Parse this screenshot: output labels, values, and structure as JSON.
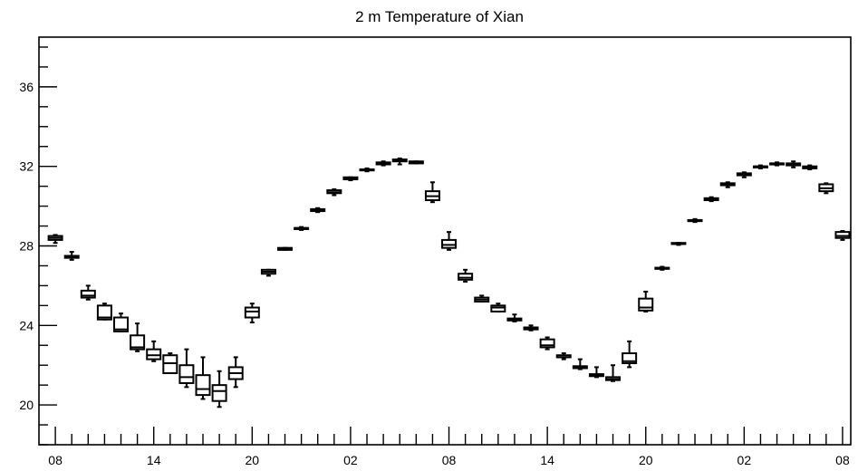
{
  "chart_data": {
    "type": "box",
    "title": "2 m Temperature of Xian",
    "xlabel": "",
    "ylabel": "",
    "ylim": [
      18,
      38.5
    ],
    "y_ticks": [
      20,
      24,
      28,
      32,
      36
    ],
    "x_ticks": [
      "08",
      "14",
      "20",
      "02",
      "08",
      "14",
      "20",
      "02",
      "08"
    ],
    "x_tick_hours": [
      0,
      6,
      12,
      18,
      24,
      30,
      36,
      42,
      48
    ],
    "xlim_hours": [
      -1,
      48.5
    ],
    "grid": false,
    "legend": "none",
    "series": [
      {
        "values": [
          {
            "hour": 0,
            "min": 28.15,
            "q1": 28.3,
            "median": 28.4,
            "q3": 28.5,
            "max": 28.55
          },
          {
            "hour": 1,
            "min": 27.3,
            "q1": 27.4,
            "median": 27.45,
            "q3": 27.5,
            "max": 27.7
          },
          {
            "hour": 2,
            "min": 25.3,
            "q1": 25.4,
            "median": 25.5,
            "q3": 25.75,
            "max": 26.0
          },
          {
            "hour": 3,
            "min": 24.3,
            "q1": 24.3,
            "median": 24.4,
            "q3": 25.0,
            "max": 25.1
          },
          {
            "hour": 4,
            "min": 23.7,
            "q1": 23.7,
            "median": 23.8,
            "q3": 24.4,
            "max": 24.6
          },
          {
            "hour": 5,
            "min": 22.7,
            "q1": 22.8,
            "median": 22.9,
            "q3": 23.5,
            "max": 24.1
          },
          {
            "hour": 6,
            "min": 22.2,
            "q1": 22.3,
            "median": 22.5,
            "q3": 22.8,
            "max": 23.2
          },
          {
            "hour": 7,
            "min": 21.6,
            "q1": 21.6,
            "median": 22.1,
            "q3": 22.5,
            "max": 22.6
          },
          {
            "hour": 8,
            "min": 20.9,
            "q1": 21.1,
            "median": 21.4,
            "q3": 22.0,
            "max": 22.8
          },
          {
            "hour": 9,
            "min": 20.3,
            "q1": 20.5,
            "median": 20.8,
            "q3": 21.5,
            "max": 22.4
          },
          {
            "hour": 10,
            "min": 19.9,
            "q1": 20.2,
            "median": 20.7,
            "q3": 21.0,
            "max": 21.7
          },
          {
            "hour": 11,
            "min": 20.9,
            "q1": 21.3,
            "median": 21.6,
            "q3": 21.9,
            "max": 22.4
          },
          {
            "hour": 12,
            "min": 24.15,
            "q1": 24.4,
            "median": 24.7,
            "q3": 24.9,
            "max": 25.1
          },
          {
            "hour": 13,
            "min": 26.5,
            "q1": 26.6,
            "median": 26.7,
            "q3": 26.8,
            "max": 26.8
          },
          {
            "hour": 14,
            "min": 27.8,
            "q1": 27.8,
            "median": 27.85,
            "q3": 27.9,
            "max": 27.9
          },
          {
            "hour": 15,
            "min": 28.8,
            "q1": 28.85,
            "median": 28.9,
            "q3": 28.9,
            "max": 28.95
          },
          {
            "hour": 16,
            "min": 29.7,
            "q1": 29.75,
            "median": 29.8,
            "q3": 29.85,
            "max": 29.9
          },
          {
            "hour": 17,
            "min": 30.55,
            "q1": 30.65,
            "median": 30.7,
            "q3": 30.8,
            "max": 30.85
          },
          {
            "hour": 18,
            "min": 31.3,
            "q1": 31.35,
            "median": 31.4,
            "q3": 31.45,
            "max": 31.45
          },
          {
            "hour": 19,
            "min": 31.75,
            "q1": 31.8,
            "median": 31.85,
            "q3": 31.85,
            "max": 31.9
          },
          {
            "hour": 20,
            "min": 32.05,
            "q1": 32.1,
            "median": 32.15,
            "q3": 32.2,
            "max": 32.25
          },
          {
            "hour": 21,
            "min": 32.1,
            "q1": 32.25,
            "median": 32.3,
            "q3": 32.35,
            "max": 32.4
          },
          {
            "hour": 22,
            "min": 32.15,
            "q1": 32.15,
            "median": 32.2,
            "q3": 32.25,
            "max": 32.25
          },
          {
            "hour": 23,
            "min": 30.2,
            "q1": 30.3,
            "median": 30.5,
            "q3": 30.75,
            "max": 31.2
          },
          {
            "hour": 24,
            "min": 27.8,
            "q1": 27.9,
            "median": 28.05,
            "q3": 28.3,
            "max": 28.7
          },
          {
            "hour": 25,
            "min": 26.2,
            "q1": 26.3,
            "median": 26.4,
            "q3": 26.6,
            "max": 26.8
          },
          {
            "hour": 26,
            "min": 25.2,
            "q1": 25.2,
            "median": 25.3,
            "q3": 25.4,
            "max": 25.5
          },
          {
            "hour": 27,
            "min": 24.7,
            "q1": 24.7,
            "median": 24.9,
            "q3": 25.0,
            "max": 25.1
          },
          {
            "hour": 28,
            "min": 24.2,
            "q1": 24.25,
            "median": 24.3,
            "q3": 24.35,
            "max": 24.55
          },
          {
            "hour": 29,
            "min": 23.75,
            "q1": 23.8,
            "median": 23.85,
            "q3": 23.9,
            "max": 24.0
          },
          {
            "hour": 30,
            "min": 22.8,
            "q1": 22.9,
            "median": 23.0,
            "q3": 23.3,
            "max": 23.4
          },
          {
            "hour": 31,
            "min": 22.3,
            "q1": 22.4,
            "median": 22.4,
            "q3": 22.5,
            "max": 22.6
          },
          {
            "hour": 32,
            "min": 21.8,
            "q1": 21.85,
            "median": 21.9,
            "q3": 21.95,
            "max": 22.3
          },
          {
            "hour": 33,
            "min": 21.4,
            "q1": 21.45,
            "median": 21.5,
            "q3": 21.55,
            "max": 21.9
          },
          {
            "hour": 34,
            "min": 21.2,
            "q1": 21.25,
            "median": 21.3,
            "q3": 21.4,
            "max": 22.0
          },
          {
            "hour": 35,
            "min": 21.9,
            "q1": 22.1,
            "median": 22.2,
            "q3": 22.6,
            "max": 23.2
          },
          {
            "hour": 36,
            "min": 24.7,
            "q1": 24.75,
            "median": 24.9,
            "q3": 25.35,
            "max": 25.7
          },
          {
            "hour": 37,
            "min": 26.8,
            "q1": 26.85,
            "median": 26.9,
            "q3": 26.9,
            "max": 26.95
          },
          {
            "hour": 38,
            "min": 28.05,
            "q1": 28.1,
            "median": 28.1,
            "q3": 28.15,
            "max": 28.15
          },
          {
            "hour": 39,
            "min": 29.2,
            "q1": 29.25,
            "median": 29.3,
            "q3": 29.3,
            "max": 29.35
          },
          {
            "hour": 40,
            "min": 30.25,
            "q1": 30.3,
            "median": 30.35,
            "q3": 30.4,
            "max": 30.45
          },
          {
            "hour": 41,
            "min": 30.95,
            "q1": 31.05,
            "median": 31.1,
            "q3": 31.15,
            "max": 31.2
          },
          {
            "hour": 42,
            "min": 31.45,
            "q1": 31.55,
            "median": 31.6,
            "q3": 31.65,
            "max": 31.7
          },
          {
            "hour": 43,
            "min": 31.9,
            "q1": 31.95,
            "median": 32.0,
            "q3": 32.0,
            "max": 32.05
          },
          {
            "hour": 44,
            "min": 32.05,
            "q1": 32.1,
            "median": 32.15,
            "q3": 32.15,
            "max": 32.2
          },
          {
            "hour": 45,
            "min": 31.95,
            "q1": 32.05,
            "median": 32.1,
            "q3": 32.15,
            "max": 32.25
          },
          {
            "hour": 46,
            "min": 31.85,
            "q1": 31.9,
            "median": 31.95,
            "q3": 32.0,
            "max": 32.05
          },
          {
            "hour": 47,
            "min": 30.65,
            "q1": 30.75,
            "median": 30.9,
            "q3": 31.1,
            "max": 31.15
          },
          {
            "hour": 48,
            "min": 28.3,
            "q1": 28.4,
            "median": 28.5,
            "q3": 28.7,
            "max": 28.75
          }
        ]
      }
    ]
  }
}
